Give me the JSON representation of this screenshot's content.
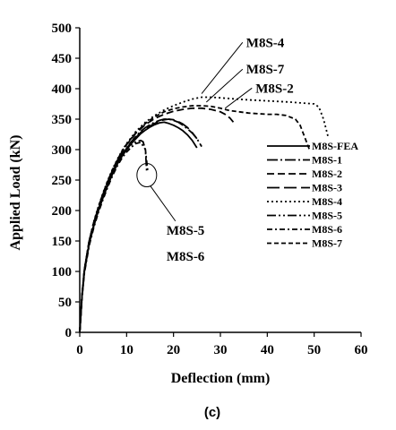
{
  "chart_data": {
    "type": "line",
    "xlabel": "Deflection (mm)",
    "ylabel": "Applied Load (kN)",
    "panel_label": "(c)",
    "xlim": [
      0,
      60
    ],
    "ylim": [
      0,
      500
    ],
    "xticks": [
      "0",
      "10",
      "20",
      "30",
      "40",
      "50",
      "60"
    ],
    "yticks": [
      "0",
      "50",
      "100",
      "150",
      "200",
      "250",
      "300",
      "350",
      "400",
      "450",
      "500"
    ],
    "grid": false,
    "legend_position": "right",
    "series": [
      {
        "name": "M8S-FEA",
        "dash": "solid",
        "x": [
          0,
          0.5,
          1,
          2,
          3,
          4,
          5,
          6,
          7,
          8,
          9,
          10,
          11,
          12,
          13,
          14,
          15,
          16,
          17,
          18,
          19,
          20,
          21,
          22,
          23,
          24,
          25
        ],
        "y": [
          0,
          60,
          100,
          145,
          175,
          200,
          222,
          242,
          260,
          276,
          289,
          300,
          310,
          318,
          326,
          332,
          337,
          341,
          344,
          345,
          343,
          340,
          336,
          331,
          324,
          315,
          303
        ]
      },
      {
        "name": "M8S-1",
        "dash": "12,3,2,3",
        "x": [
          0,
          0.5,
          1,
          2,
          3,
          4,
          5,
          6,
          7,
          8,
          9,
          10,
          11,
          12,
          13,
          14,
          15,
          16,
          17,
          18,
          19,
          20,
          21,
          22,
          23,
          24,
          25,
          26
        ],
        "y": [
          0,
          62,
          102,
          148,
          178,
          203,
          225,
          245,
          263,
          279,
          292,
          303,
          313,
          322,
          330,
          336,
          341,
          345,
          348,
          350,
          350,
          348,
          345,
          340,
          334,
          327,
          318,
          305
        ]
      },
      {
        "name": "M8S-2",
        "dash": "8,4",
        "x": [
          0,
          0.5,
          1,
          2,
          3,
          4,
          5,
          6,
          7,
          8,
          9,
          10,
          12,
          14,
          16,
          18,
          20,
          22,
          24,
          26,
          28,
          30,
          31,
          32,
          33
        ],
        "y": [
          0,
          62,
          103,
          150,
          180,
          205,
          228,
          248,
          266,
          282,
          296,
          308,
          327,
          341,
          351,
          358,
          363,
          366,
          368,
          368,
          366,
          362,
          358,
          352,
          343
        ]
      },
      {
        "name": "M8S-3",
        "dash": "14,5",
        "x": [
          0,
          0.5,
          1,
          2,
          3,
          4,
          5,
          6,
          7,
          8,
          9,
          10,
          11,
          12,
          13,
          14,
          15,
          16,
          17,
          18,
          19,
          20,
          21,
          22,
          23,
          24,
          25
        ],
        "y": [
          0,
          60,
          101,
          147,
          177,
          202,
          224,
          244,
          262,
          278,
          291,
          302,
          312,
          320,
          328,
          334,
          339,
          343,
          347,
          349,
          350,
          349,
          346,
          342,
          336,
          328,
          318
        ]
      },
      {
        "name": "M8S-4",
        "dash": "2,3",
        "x": [
          0,
          0.5,
          1,
          2,
          3,
          4,
          5,
          6,
          7,
          8,
          9,
          10,
          12,
          14,
          16,
          18,
          20,
          22,
          24,
          26,
          28,
          30,
          35,
          40,
          45,
          50,
          51,
          52,
          53
        ],
        "y": [
          0,
          62,
          103,
          150,
          182,
          207,
          230,
          250,
          268,
          284,
          298,
          310,
          330,
          345,
          356,
          365,
          372,
          378,
          383,
          386,
          386,
          385,
          382,
          380,
          378,
          375,
          370,
          350,
          320
        ]
      },
      {
        "name": "M8S-5",
        "dash": "10,3,2,3,2,3",
        "x": [
          0,
          0.5,
          1,
          2,
          3,
          4,
          5,
          6,
          7,
          8,
          9,
          10,
          11,
          12,
          13,
          13.5,
          14,
          14.3
        ],
        "y": [
          0,
          60,
          100,
          145,
          175,
          200,
          222,
          242,
          260,
          276,
          289,
          300,
          308,
          313,
          315,
          313,
          300,
          262
        ]
      },
      {
        "name": "M8S-6",
        "dash": "6,3,2,3",
        "x": [
          0,
          0.5,
          1,
          2,
          3,
          4,
          5,
          6,
          7,
          8,
          9,
          10,
          11,
          12,
          13,
          14,
          14.5
        ],
        "y": [
          0,
          58,
          97,
          142,
          172,
          197,
          219,
          239,
          257,
          273,
          286,
          296,
          304,
          310,
          312,
          300,
          265
        ]
      },
      {
        "name": "M8S-7",
        "dash": "5,3",
        "x": [
          0,
          0.5,
          1,
          2,
          3,
          4,
          5,
          6,
          7,
          8,
          9,
          10,
          12,
          14,
          16,
          18,
          20,
          22,
          24,
          26,
          28,
          30,
          32,
          34,
          36,
          38,
          40,
          42,
          44,
          46,
          47,
          48,
          49
        ],
        "y": [
          0,
          62,
          103,
          150,
          181,
          206,
          229,
          249,
          267,
          283,
          297,
          309,
          328,
          343,
          354,
          362,
          367,
          370,
          372,
          372,
          371,
          368,
          364,
          362,
          360,
          359,
          358,
          358,
          356,
          350,
          340,
          320,
          300
        ]
      }
    ],
    "annotations": [
      {
        "text": "M8S-4",
        "x": 35.5,
        "y": 476,
        "target_x": 26,
        "target_y": 386
      },
      {
        "text": "M8S-7",
        "x": 35.5,
        "y": 432,
        "target_x": 27,
        "target_y": 372
      },
      {
        "text": "M8S-2",
        "x": 37.5,
        "y": 401,
        "target_x": 31,
        "target_y": 362
      },
      {
        "text": "M8S-5",
        "x": 18.5,
        "y": 168,
        "target_x": 14.3,
        "target_y": 258
      },
      {
        "text": "M8S-6",
        "x": 18.5,
        "y": 125,
        "target_x": 14.3,
        "target_y": 258
      }
    ]
  }
}
